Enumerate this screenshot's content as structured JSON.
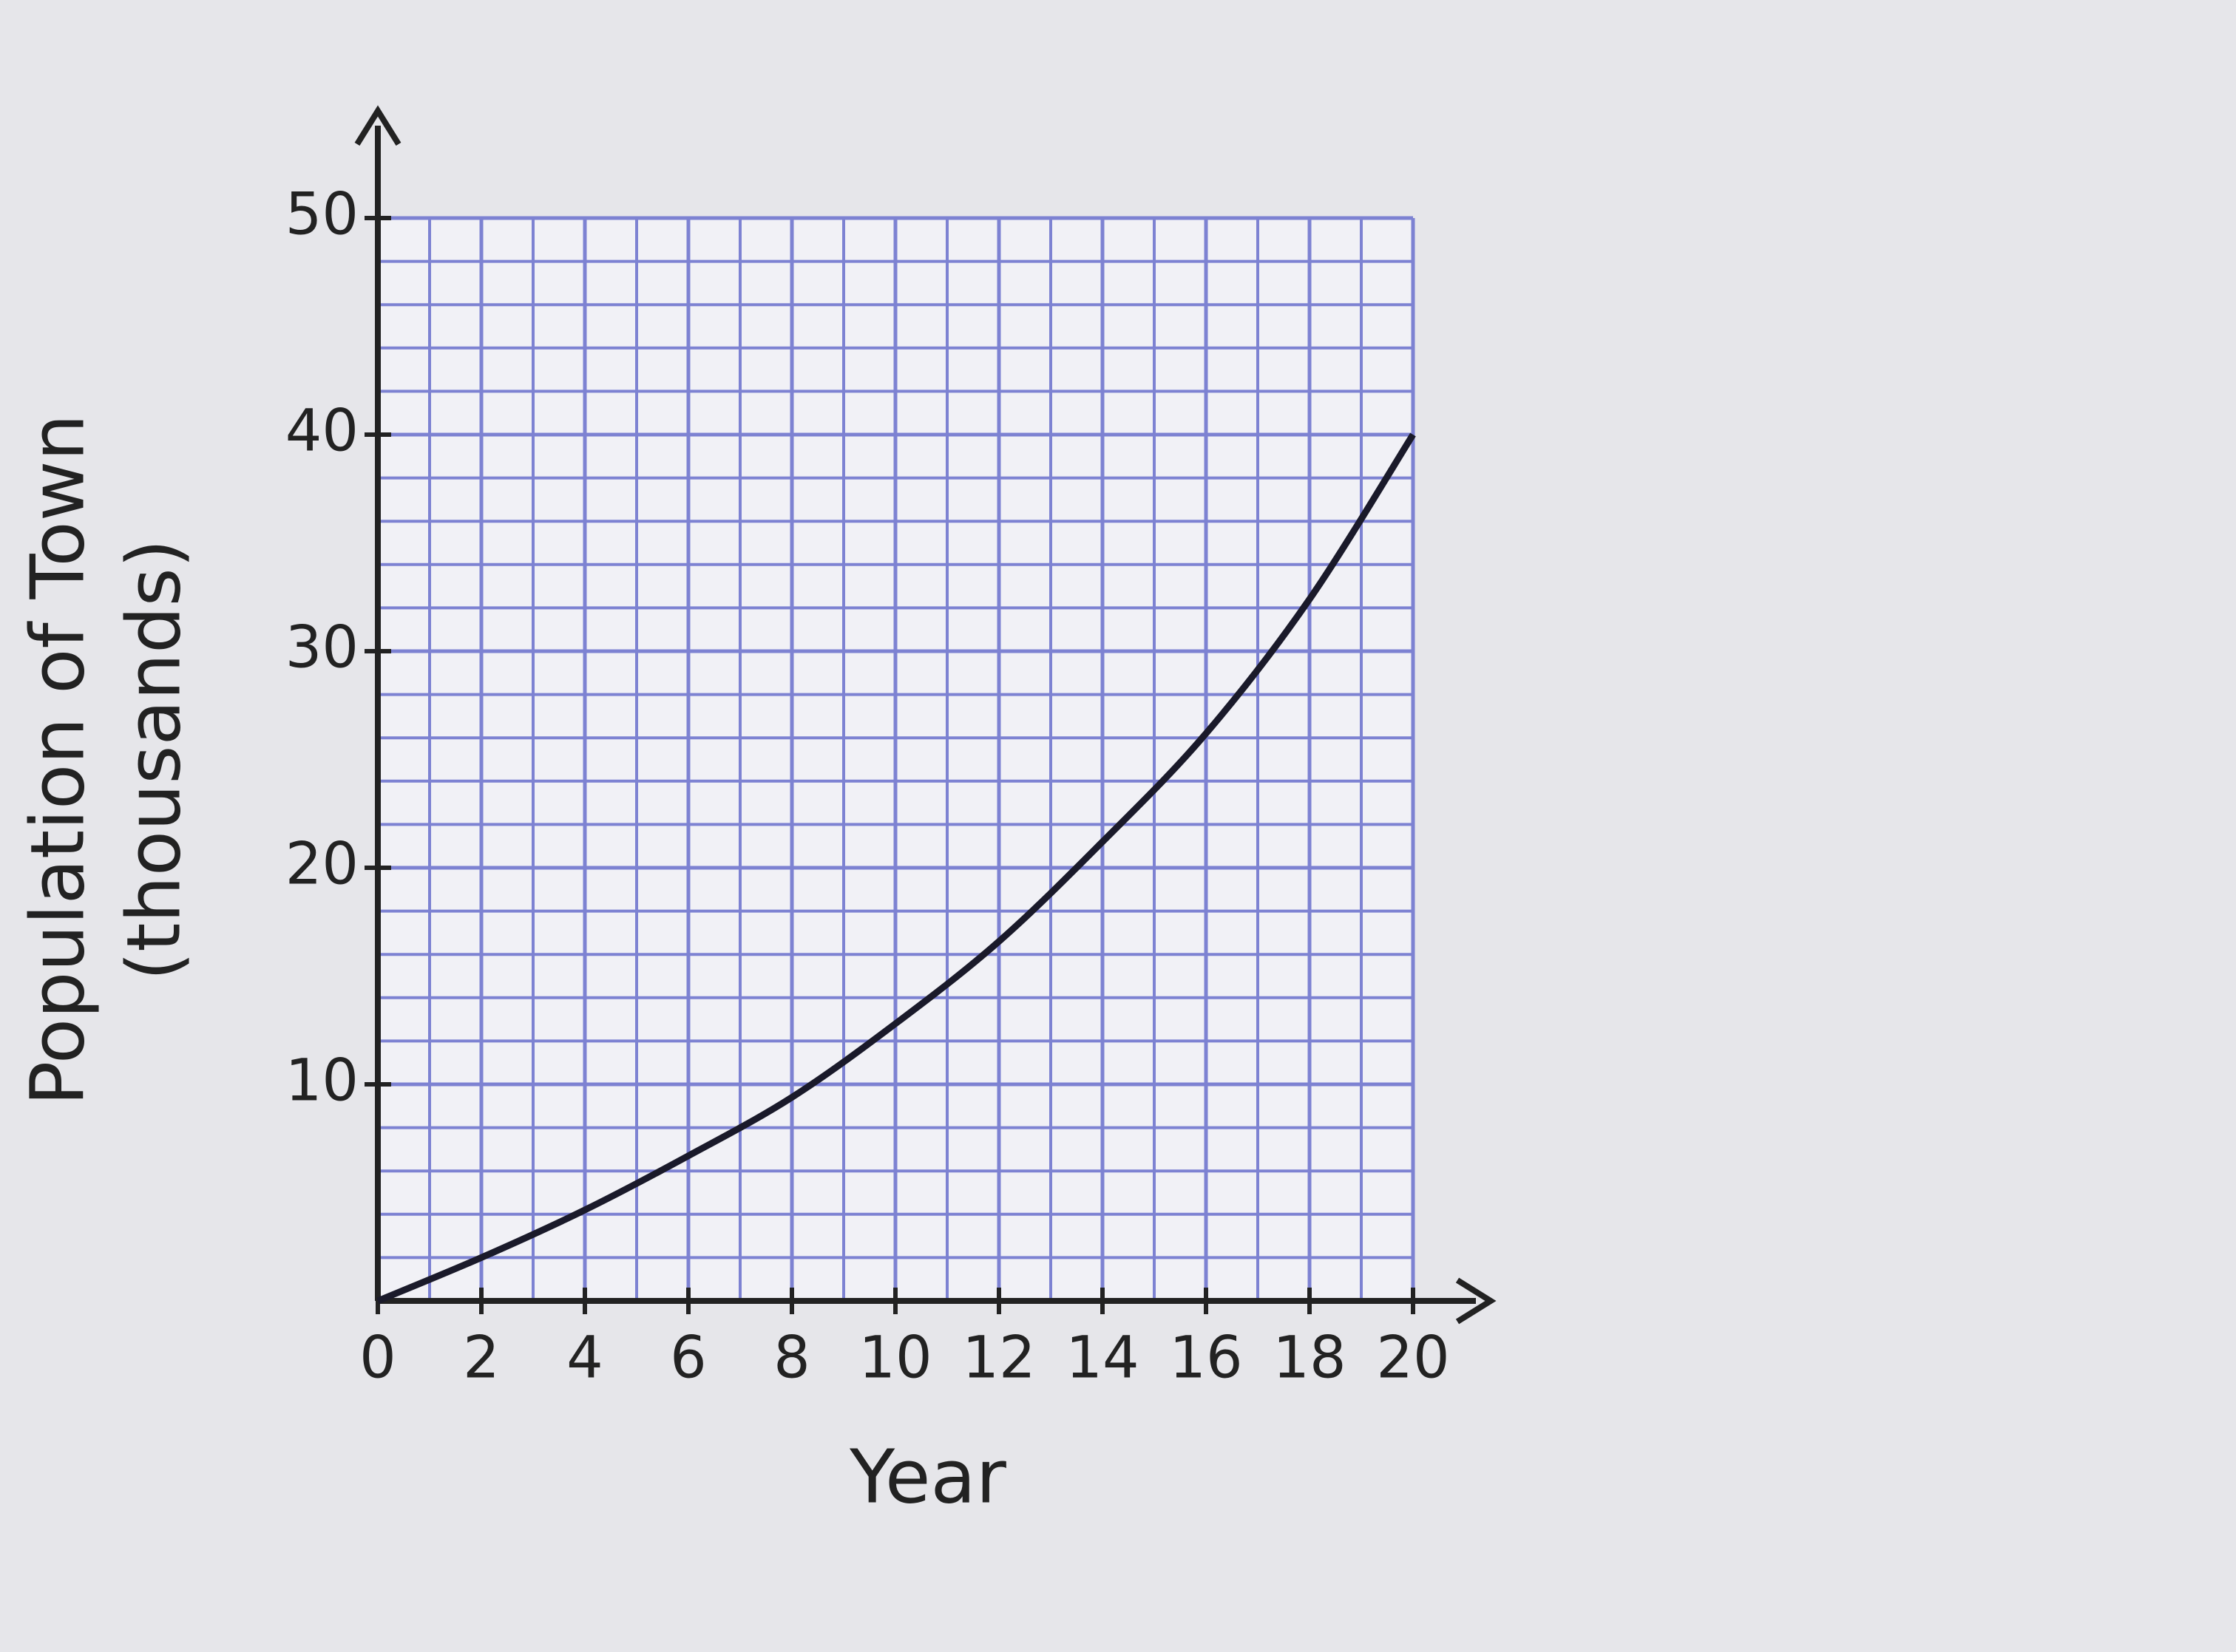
{
  "chart_data": {
    "type": "line",
    "xlabel": "Year",
    "ylabel": [
      "Population of Town",
      "(thousands)"
    ],
    "x": [
      0,
      2,
      4,
      6,
      8,
      10,
      12,
      14,
      16,
      18,
      20
    ],
    "series": [
      {
        "color": "#1a1a2a",
        "values": [
          0,
          2,
          4.2,
          6.7,
          9.4,
          12.8,
          16.6,
          21.2,
          26.2,
          32.4,
          40
        ]
      }
    ],
    "xlim": [
      0,
      20
    ],
    "ylim": [
      0,
      50
    ],
    "xticks": [
      0,
      2,
      4,
      6,
      8,
      10,
      12,
      14,
      16,
      18,
      20
    ],
    "yticks": [
      10,
      20,
      30,
      40,
      50
    ],
    "grid": true,
    "grid_color": "#7d82d2"
  }
}
